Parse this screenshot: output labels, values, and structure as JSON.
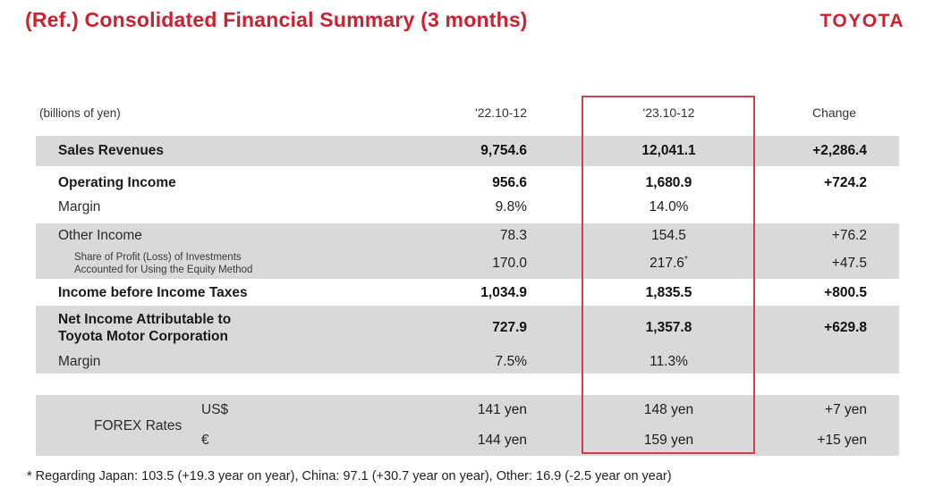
{
  "header": {
    "title": "(Ref.) Consolidated Financial Summary (3 months)",
    "brand": "TOYOTA"
  },
  "table": {
    "unit_label": "(billions of yen)",
    "columns": {
      "prev": "'22.10-12",
      "curr": "'23.10-12",
      "change": "Change"
    },
    "rows": [
      {
        "label": "Sales Revenues",
        "v22": "9,754.6",
        "v23": "12,041.1",
        "change": "+2,286.4"
      },
      {
        "label": "Operating Income",
        "v22": "956.6",
        "v23": "1,680.9",
        "change": "+724.2"
      },
      {
        "label": "Margin",
        "v22": "9.8%",
        "v23": "14.0%",
        "change": ""
      },
      {
        "label": "Other Income",
        "v22": "78.3",
        "v23": "154.5",
        "change": "+76.2"
      },
      {
        "label_line1": "Share of Profit (Loss) of Investments",
        "label_line2": "Accounted for Using the Equity Method",
        "v22": "170.0",
        "v23": "217.6",
        "v23_note": "*",
        "change": "+47.5"
      },
      {
        "label": "Income before Income Taxes",
        "v22": "1,034.9",
        "v23": "1,835.5",
        "change": "+800.5"
      },
      {
        "label_line1": "Net Income Attributable to",
        "label_line2": "Toyota Motor Corporation",
        "v22": "727.9",
        "v23": "1,357.8",
        "change": "+629.8"
      },
      {
        "label": "Margin",
        "v22": "7.5%",
        "v23": "11.3%",
        "change": ""
      }
    ],
    "forex": {
      "label": "FOREX Rates",
      "rows": [
        {
          "currency": "US$",
          "v22": "141 yen",
          "v23": "148 yen",
          "change": "+7 yen"
        },
        {
          "currency": "€",
          "v22": "144 yen",
          "v23": "159 yen",
          "change": "+15 yen"
        }
      ]
    }
  },
  "footnote": "* Regarding Japan: 103.5 (+19.3 year on year), China: 97.1 (+30.7 year on year), Other: 16.9 (-2.5 year on year)",
  "colors": {
    "accent_red": "#cc2130",
    "highlight_box_red": "#c7434d",
    "row_gray": "#d9d9d9"
  }
}
